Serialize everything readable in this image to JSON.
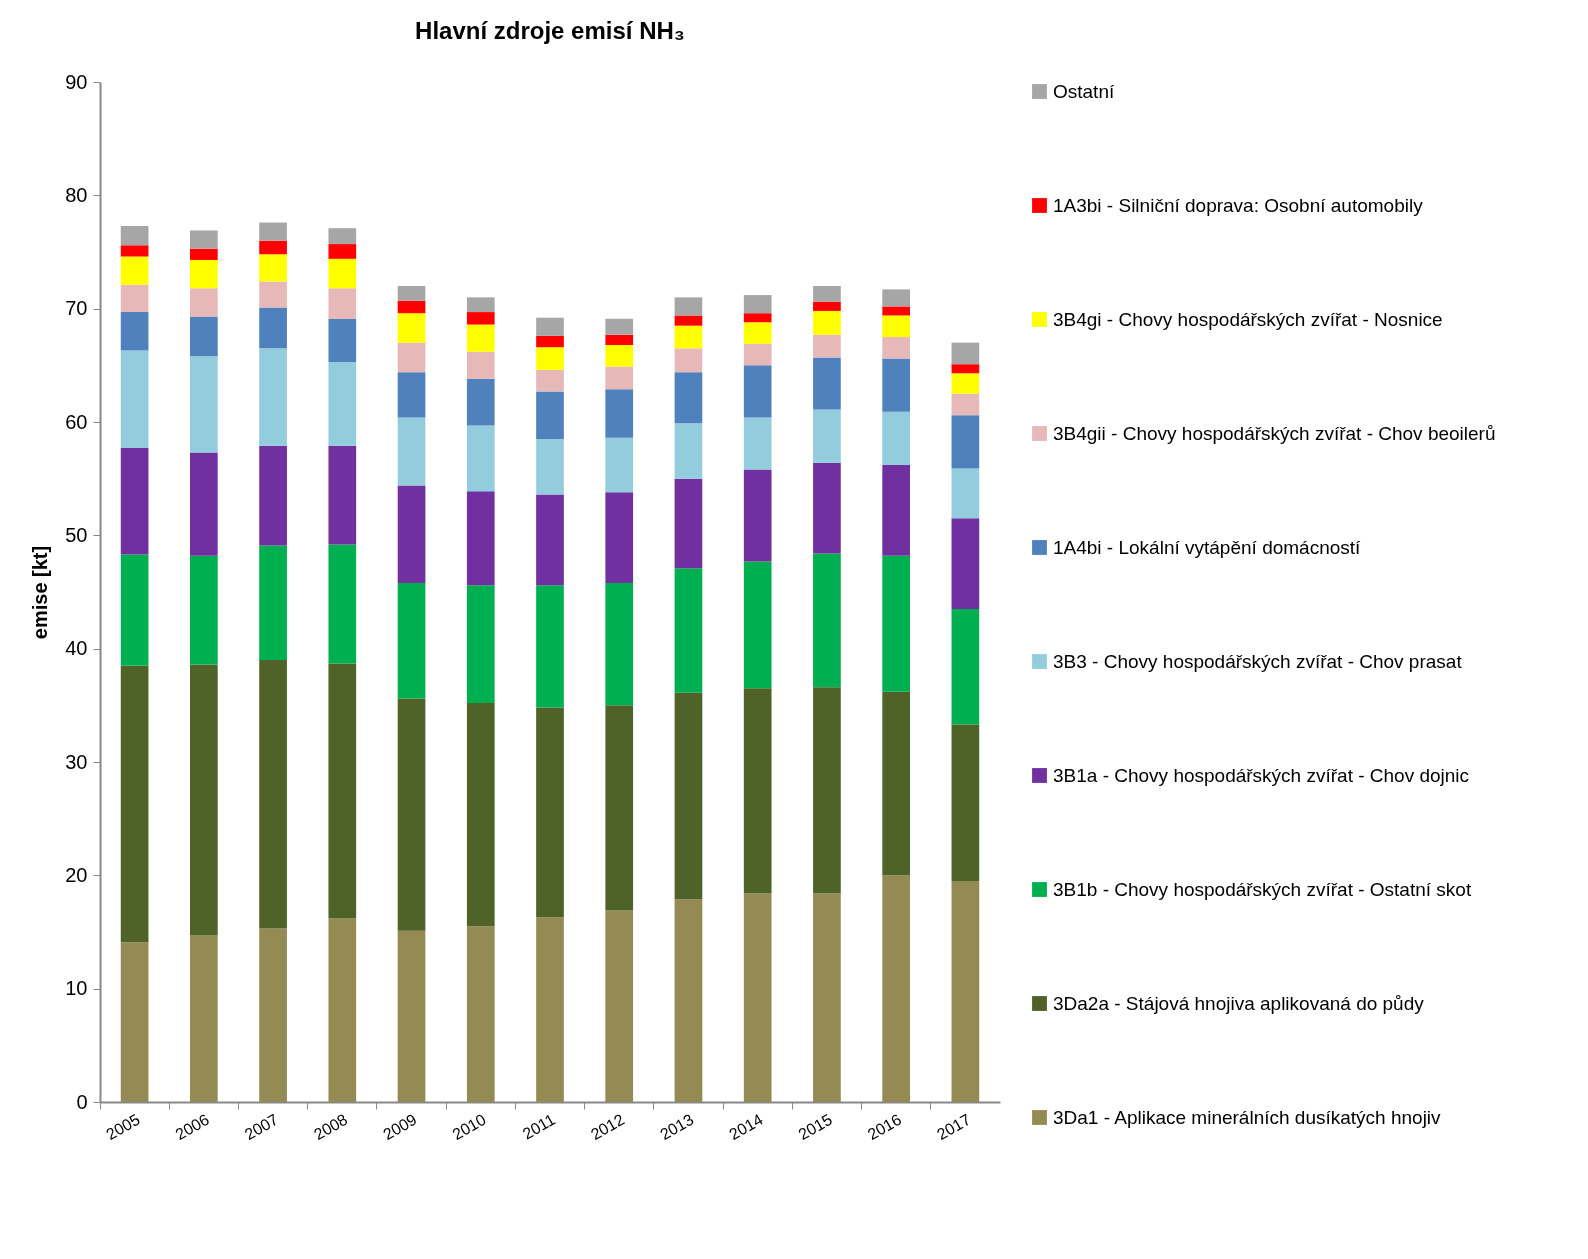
{
  "chart_data": {
    "type": "bar",
    "title": "Hlavní zdroje emisí NH₃",
    "ylabel": "emise [kt]",
    "stacked": true,
    "legend": "right",
    "grid": false,
    "categories": [
      "2005",
      "2006",
      "2007",
      "2008",
      "2009",
      "2010",
      "2011",
      "2012",
      "2013",
      "2014",
      "2015",
      "2016",
      "2017"
    ],
    "ylim": [
      0,
      90
    ],
    "yticks": [
      0,
      10,
      20,
      30,
      40,
      50,
      60,
      70,
      80,
      90
    ],
    "series": [
      {
        "name": "3Da1 - Aplikace minerálních dusíkatých hnojiv",
        "color": "#948a54",
        "values": [
          14.1,
          14.7,
          15.3,
          16.2,
          15.1,
          15.5,
          16.3,
          16.9,
          17.9,
          18.4,
          18.4,
          20.0,
          19.5
        ]
      },
      {
        "name": "3Da2a - Stájová hnojiva aplikovaná do půdy",
        "color": "#4f6228",
        "values": [
          24.4,
          23.9,
          23.7,
          22.5,
          20.5,
          19.7,
          18.5,
          18.1,
          18.2,
          18.1,
          18.2,
          16.2,
          13.8
        ]
      },
      {
        "name": "3B1b - Chovy hospodářských zvířat - Ostatní skot",
        "color": "#00b050",
        "values": [
          9.8,
          9.6,
          10.1,
          10.5,
          10.2,
          10.4,
          10.8,
          10.8,
          11.0,
          11.2,
          11.8,
          12.0,
          10.2
        ]
      },
      {
        "name": "3B1a - Chovy hospodářských zvířat - Chov dojnic",
        "color": "#7030a0",
        "values": [
          9.4,
          9.1,
          8.8,
          8.7,
          8.6,
          8.3,
          8.0,
          8.0,
          7.9,
          8.1,
          8.0,
          8.0,
          8.0
        ]
      },
      {
        "name": "3B3 - Chovy hospodářských zvířat - Chov prasat",
        "color": "#93cddd",
        "values": [
          8.6,
          8.5,
          8.6,
          7.4,
          6.0,
          5.8,
          4.9,
          4.8,
          4.9,
          4.6,
          4.7,
          4.7,
          4.4
        ]
      },
      {
        "name": "1A4bi - Lokální vytápění domácností",
        "color": "#4f81bd",
        "values": [
          3.4,
          3.5,
          3.6,
          3.8,
          4.0,
          4.1,
          4.2,
          4.3,
          4.5,
          4.6,
          4.6,
          4.7,
          4.7
        ]
      },
      {
        "name": "3B4gii - Chovy hospodářských zvířat - Chov beoilerů",
        "color": "#e6b9b8",
        "values": [
          2.4,
          2.5,
          2.3,
          2.7,
          2.6,
          2.4,
          1.9,
          2.0,
          2.1,
          1.9,
          2.0,
          1.9,
          1.9
        ]
      },
      {
        "name": "3B4gi - Chovy hospodářských zvířat - Nosnice",
        "color": "#ffff00",
        "values": [
          2.5,
          2.5,
          2.4,
          2.6,
          2.6,
          2.4,
          2.0,
          1.9,
          2.0,
          1.9,
          2.1,
          1.9,
          1.8
        ]
      },
      {
        "name": "1A3bi - Silniční doprava: Osobní automobily",
        "color": "#ff0000",
        "values": [
          1.0,
          1.0,
          1.2,
          1.3,
          1.1,
          1.1,
          1.0,
          0.9,
          0.9,
          0.8,
          0.8,
          0.8,
          0.8
        ]
      },
      {
        "name": "Ostatní",
        "color": "#a6a6a6",
        "values": [
          1.7,
          1.6,
          1.6,
          1.4,
          1.3,
          1.3,
          1.6,
          1.4,
          1.6,
          1.6,
          1.4,
          1.5,
          1.9
        ]
      }
    ]
  }
}
